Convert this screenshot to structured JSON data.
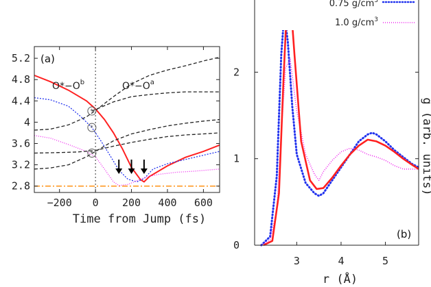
{
  "chart_data": [
    {
      "panel_label": "(a)",
      "type": "line",
      "xlabel": "Time from Jump (fs)",
      "ylabel": "",
      "xlim": [
        -340,
        690
      ],
      "ylim": [
        2.68,
        5.42
      ],
      "xticks": [
        "-200",
        "0",
        "200",
        "400",
        "600"
      ],
      "yticks": [
        "2.8",
        "3.2",
        "3.6",
        "4",
        "4.4",
        "4.8",
        "5.2"
      ],
      "annotations": {
        "left": "O*−O",
        "left_sup": "b",
        "right": "O*−O",
        "right_sup": "a",
        "star": "*"
      },
      "colors": {
        "red": "#ff2020",
        "blue": "#2233ee",
        "magenta": "#ee22ee",
        "black": "#222222",
        "orange": "#ff8800"
      },
      "marker_icons": [
        "circle-marker-icon",
        "down-arrow-icon"
      ],
      "vline_x": 0,
      "hline_y": 2.8,
      "circle_markers": [
        [
          -20,
          4.21
        ],
        [
          -20,
          3.9
        ],
        [
          -20,
          3.42
        ]
      ],
      "arrows_x": [
        130,
        200,
        270
      ],
      "series": [
        {
          "style": "red-solid",
          "x": [
            -340,
            -250,
            -150,
            -50,
            0,
            50,
            100,
            150,
            200,
            250,
            270,
            300,
            400,
            500,
            600,
            690
          ],
          "y": [
            4.88,
            4.76,
            4.6,
            4.4,
            4.25,
            4.05,
            3.8,
            3.5,
            3.15,
            2.92,
            2.88,
            2.98,
            3.18,
            3.34,
            3.45,
            3.57
          ]
        },
        {
          "style": "blue-dotted",
          "x": [
            -340,
            -250,
            -150,
            -80,
            -20,
            30,
            80,
            130,
            180,
            230,
            270,
            320,
            400,
            500,
            600,
            690
          ],
          "y": [
            4.46,
            4.42,
            4.3,
            4.1,
            3.9,
            3.65,
            3.38,
            3.1,
            2.93,
            2.88,
            2.94,
            3.12,
            3.22,
            3.3,
            3.38,
            3.45
          ]
        },
        {
          "style": "magenta-dotted",
          "x": [
            -340,
            -250,
            -150,
            -50,
            0,
            50,
            100,
            130,
            180,
            230,
            280,
            350,
            450,
            550,
            690
          ],
          "y": [
            3.75,
            3.7,
            3.58,
            3.45,
            3.35,
            3.12,
            2.88,
            2.81,
            2.83,
            2.9,
            2.97,
            3.02,
            3.06,
            3.08,
            3.12
          ]
        },
        {
          "style": "black-dashed",
          "x": [
            -340,
            -250,
            -150,
            -50,
            0,
            100,
            200,
            300,
            400,
            500,
            600,
            690
          ],
          "y": [
            3.85,
            3.87,
            3.95,
            4.1,
            4.22,
            4.48,
            4.72,
            4.88,
            4.98,
            5.06,
            5.15,
            5.22
          ]
        },
        {
          "style": "black-dashed",
          "x": [
            -340,
            -250,
            -150,
            -50,
            0,
            100,
            200,
            300,
            400,
            500,
            600,
            690
          ],
          "y": [
            3.12,
            3.14,
            3.2,
            3.35,
            3.45,
            3.65,
            3.78,
            3.86,
            3.93,
            3.98,
            4.02,
            4.05
          ]
        },
        {
          "style": "black-dashed",
          "x": [
            -340,
            -200,
            -100,
            0,
            100,
            200,
            300,
            400,
            500,
            600,
            690
          ],
          "y": [
            3.42,
            3.43,
            3.44,
            3.47,
            3.55,
            3.62,
            3.68,
            3.73,
            3.76,
            3.78,
            3.8
          ]
        },
        {
          "style": "black-dashed",
          "x": [
            -20,
            100,
            200,
            300,
            400,
            500,
            690
          ],
          "y": [
            4.21,
            4.38,
            4.48,
            4.52,
            4.55,
            4.57,
            4.57
          ]
        }
      ]
    },
    {
      "panel_label": "(b)",
      "type": "line",
      "xlabel": "r (Å)",
      "ylabel": "g (arb. units)",
      "xlim": [
        2.05,
        5.75
      ],
      "ylim": [
        0,
        2.85
      ],
      "xticks": [
        "3",
        "4",
        "5"
      ],
      "yticks": [
        "0",
        "1",
        "2"
      ],
      "legend_position": "top-right",
      "series": [
        {
          "name": "0.75 g/cm",
          "name_sup": "3",
          "style": "blue-dotted",
          "x": [
            2.2,
            2.4,
            2.55,
            2.65,
            2.72,
            2.8,
            2.9,
            3.0,
            3.2,
            3.4,
            3.5,
            3.6,
            3.8,
            4.0,
            4.2,
            4.4,
            4.6,
            4.7,
            4.8,
            5.0,
            5.2,
            5.4,
            5.6,
            5.75
          ],
          "y": [
            0,
            0.1,
            0.8,
            2.2,
            2.68,
            2.35,
            1.6,
            1.05,
            0.72,
            0.6,
            0.57,
            0.6,
            0.75,
            0.9,
            1.05,
            1.2,
            1.28,
            1.3,
            1.28,
            1.2,
            1.1,
            1.02,
            0.94,
            0.9
          ]
        },
        {
          "name": "1.0 g/cm",
          "name_sup": "3",
          "style": "magenta-dotted",
          "x": [
            2.2,
            2.4,
            2.55,
            2.65,
            2.75,
            2.85,
            3.0,
            3.2,
            3.4,
            3.5,
            3.6,
            3.8,
            4.0,
            4.2,
            4.4,
            4.6,
            4.8,
            5.0,
            5.2,
            5.4,
            5.6,
            5.75
          ],
          "y": [
            0,
            0.06,
            0.4,
            1.3,
            2.05,
            2.15,
            1.55,
            1.05,
            0.82,
            0.75,
            0.85,
            0.98,
            1.08,
            1.12,
            1.1,
            1.05,
            1.02,
            0.98,
            0.92,
            0.88,
            0.88,
            0.88
          ]
        },
        {
          "name": "",
          "style": "red-solid",
          "x": [
            2.25,
            2.45,
            2.6,
            2.7,
            2.78,
            2.85,
            2.95,
            3.1,
            3.3,
            3.45,
            3.6,
            3.8,
            4.0,
            4.2,
            4.4,
            4.6,
            4.8,
            5.0,
            5.2,
            5.4,
            5.6,
            5.75
          ],
          "y": [
            0,
            0.05,
            0.6,
            1.9,
            2.8,
            2.9,
            2.2,
            1.2,
            0.75,
            0.65,
            0.66,
            0.78,
            0.92,
            1.05,
            1.15,
            1.22,
            1.2,
            1.15,
            1.08,
            1.0,
            0.93,
            0.88
          ]
        }
      ]
    }
  ]
}
